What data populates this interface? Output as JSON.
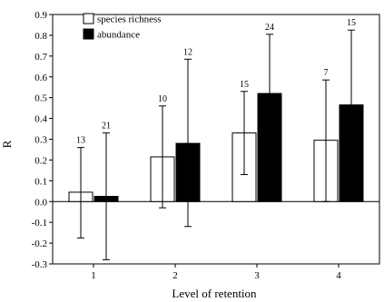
{
  "chart_data": {
    "type": "bar",
    "title": "",
    "xlabel": "Level of retention",
    "ylabel": "R",
    "categories": [
      "1",
      "2",
      "3",
      "4"
    ],
    "ylim": [
      -0.3,
      0.9
    ],
    "yticks": [
      "-0.3",
      "-0.2",
      "-0.1",
      "0.0",
      "0.1",
      "0.2",
      "0.3",
      "0.4",
      "0.5",
      "0.6",
      "0.7",
      "0.8",
      "0.9"
    ],
    "grid": false,
    "legend_position": "top-left",
    "series": [
      {
        "name": "species richness",
        "fill": "#ffffff",
        "values": [
          0.045,
          0.215,
          0.33,
          0.295
        ],
        "error_low": [
          -0.175,
          -0.03,
          0.13,
          0.0
        ],
        "error_high": [
          0.26,
          0.46,
          0.53,
          0.585
        ],
        "n_labels": [
          "13",
          "10",
          "15",
          "7"
        ]
      },
      {
        "name": "abundance",
        "fill": "#000000",
        "values": [
          0.025,
          0.28,
          0.52,
          0.465
        ],
        "error_low": [
          -0.28,
          -0.12,
          0.24,
          0.11
        ],
        "error_high": [
          0.33,
          0.685,
          0.805,
          0.825
        ],
        "n_labels": [
          "21",
          "12",
          "24",
          "15"
        ]
      }
    ]
  }
}
